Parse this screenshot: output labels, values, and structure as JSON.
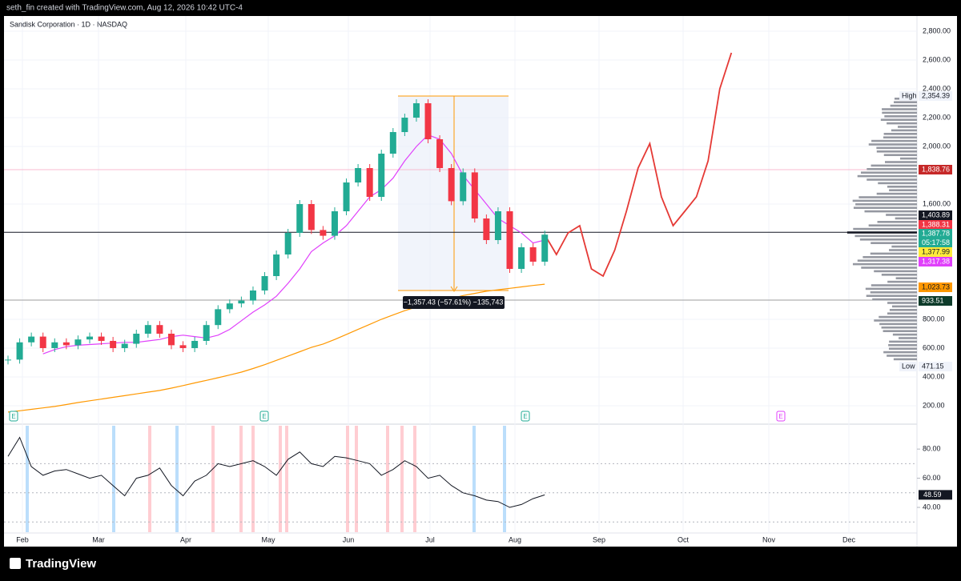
{
  "header": {
    "credit": "seth_fin created with TradingView.com, Aug 12, 2026 10:42 UTC-4"
  },
  "footer": {
    "brand": "TradingView"
  },
  "chart_data": {
    "type": "candlestick",
    "title": "Sandisk Corporation · 1D · NASDAQ",
    "months": [
      "Feb",
      "Mar",
      "Apr",
      "May",
      "Jun",
      "Jul",
      "Aug",
      "Sep",
      "Oct",
      "Nov",
      "Dec"
    ],
    "ylim": [
      72,
      2878
    ],
    "yticks": [
      {
        "value": 200,
        "label": "200.00"
      },
      {
        "value": 400,
        "label": "400.00"
      },
      {
        "value": 600,
        "label": "600.00"
      },
      {
        "value": 800,
        "label": "800.00"
      },
      {
        "value": 1600,
        "label": "1,600.00"
      },
      {
        "value": 2000,
        "label": "2,000.00"
      },
      {
        "value": 2200,
        "label": "2,200.00"
      },
      {
        "value": 2400,
        "label": "2,400.00"
      },
      {
        "value": 2600,
        "label": "2,600.00"
      },
      {
        "value": 2800,
        "label": "2,800.00"
      }
    ],
    "up_color": "#22ab94",
    "down_color": "#f23645",
    "closes": [
      520,
      640,
      680,
      600,
      640,
      620,
      660,
      680,
      650,
      600,
      630,
      700,
      760,
      700,
      620,
      600,
      650,
      760,
      870,
      910,
      930,
      1000,
      1100,
      1250,
      1400,
      1600,
      1420,
      1380,
      1550,
      1750,
      1850,
      1650,
      1950,
      2100,
      2200,
      2300,
      2050,
      1850,
      1620,
      1820,
      1500,
      1350,
      1550,
      1150,
      1300,
      1200,
      1387.78
    ],
    "overlays": [
      {
        "color": "#e040fb",
        "values": [
          null,
          null,
          null,
          560,
          590,
          610,
          620,
          625,
          630,
          635,
          640,
          640,
          650,
          660,
          680,
          690,
          680,
          670,
          690,
          730,
          790,
          850,
          900,
          960,
          1050,
          1150,
          1270,
          1330,
          1380,
          1450,
          1550,
          1650,
          1700,
          1780,
          1900,
          2000,
          2080,
          2050,
          1950,
          1800,
          1700,
          1600,
          1500,
          1450,
          1400,
          1330,
          1350
        ]
      },
      {
        "color": "#ff9800",
        "values": [
          156,
          165,
          175,
          185,
          195,
          208,
          222,
          234,
          246,
          258,
          270,
          282,
          294,
          306,
          322,
          340,
          358,
          376,
          394,
          413,
          433,
          458,
          485,
          515,
          545,
          575,
          605,
          628,
          660,
          695,
          730,
          765,
          800,
          830,
          860,
          885,
          905,
          925,
          945,
          965,
          980,
          995,
          1005,
          1015,
          1025,
          1035,
          1044
        ]
      },
      {
        "color": "#e53935",
        "values": [
          null,
          null,
          null,
          null,
          null,
          null,
          null,
          null,
          null,
          null,
          null,
          null,
          null,
          null,
          null,
          null,
          null,
          null,
          null,
          null,
          null,
          null,
          null,
          null,
          null,
          null,
          null,
          null,
          null,
          null,
          null,
          null,
          null,
          null,
          null,
          null,
          null,
          null,
          null,
          null,
          null,
          null,
          null,
          null,
          null,
          null,
          1387.78,
          1250,
          1400,
          1450,
          1150,
          1100,
          1280,
          1550,
          1850,
          2020,
          1650,
          1450,
          1550,
          1650,
          1900,
          2400,
          2650
        ]
      }
    ],
    "levels": [
      {
        "value": 1838.76,
        "color": "#f8bbd0"
      },
      {
        "value": 1403.89,
        "color": "#131722"
      },
      {
        "value": 933.51,
        "color": "#9e9e9e"
      }
    ],
    "price_tags": [
      {
        "value": 2354.39,
        "label": "2,354.39",
        "prefix": "High",
        "bg": "#f0f3fa",
        "fg": "#131722"
      },
      {
        "value": 1838.76,
        "label": "1,838.76",
        "bg": "#c62828",
        "fg": "#ffffff"
      },
      {
        "value": 1403.89,
        "label": "1,403.89",
        "bg": "#131722",
        "fg": "#ffffff"
      },
      {
        "value": 1388.31,
        "label": "1,388.31",
        "bg": "#f23645",
        "fg": "#ffffff"
      },
      {
        "value": 1387.78,
        "label": "1,387.78",
        "bg": "#22ab94",
        "fg": "#ffffff",
        "sub": "05:17:58"
      },
      {
        "value": 1377.99,
        "label": "1,377.99",
        "bg": "#ffeb3b",
        "fg": "#131722"
      },
      {
        "value": 1317.38,
        "label": "1,317.38",
        "bg": "#e040fb",
        "fg": "#ffffff"
      },
      {
        "value": 1023.73,
        "label": "1,023.73",
        "bg": "#ff9800",
        "fg": "#131722"
      },
      {
        "value": 933.51,
        "label": "933.51",
        "bg": "#0d3b2a",
        "fg": "#ffffff"
      },
      {
        "value": 471.15,
        "label": "471.15",
        "prefix": "Low",
        "bg": "#f0f3fa",
        "fg": "#131722"
      }
    ],
    "measure": {
      "label": "−1,357.43 (−57.61%) −135,743"
    },
    "earnings_markers": [
      "E",
      "E",
      "E",
      "E"
    ],
    "oscillator": {
      "ylim": [
        23,
        96
      ],
      "yticks": [
        {
          "value": 40,
          "label": "40.00"
        },
        {
          "value": 60,
          "label": "60.00"
        },
        {
          "value": 80,
          "label": "80.00"
        }
      ],
      "bands": [
        30,
        50,
        70
      ],
      "color": "#131722",
      "values": [
        75,
        88,
        68,
        62,
        65,
        66,
        63,
        60,
        62,
        55,
        48,
        60,
        62,
        67,
        55,
        48,
        58,
        62,
        70,
        68,
        70,
        72,
        68,
        62,
        73,
        78,
        70,
        68,
        75,
        74,
        72,
        70,
        62,
        66,
        72,
        68,
        60,
        62,
        55,
        50,
        48,
        45,
        44,
        40,
        42,
        46,
        48.59
      ],
      "last": {
        "value": 48.59,
        "label": "48.59"
      }
    }
  }
}
